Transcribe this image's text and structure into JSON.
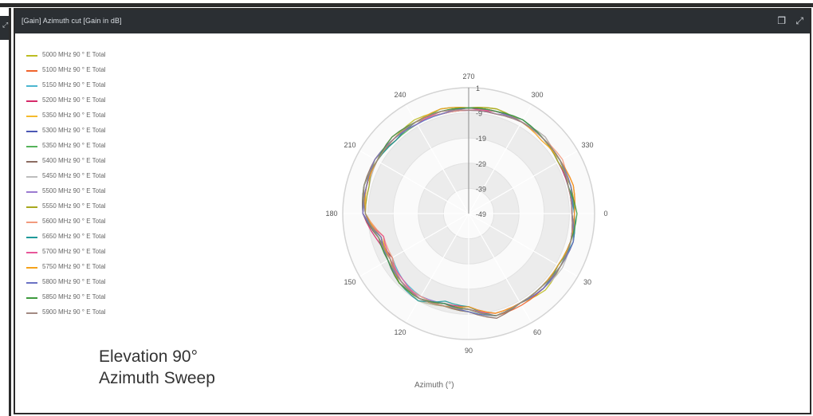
{
  "panel": {
    "title": "[Gain] Azimuth cut [Gain in dB]"
  },
  "caption": {
    "line1": "Elevation 90°",
    "line2": "Azimuth Sweep"
  },
  "colors": {
    "header_bg": "#2b2f33",
    "header_text": "#d8dde2",
    "polar_band_dark": "#ececec",
    "polar_band_light": "#fafafa"
  },
  "chart_data": {
    "type": "line",
    "subtype": "polar",
    "title": "[Gain] Azimuth cut [Gain in dB]",
    "xlabel": "Azimuth (°)",
    "angular_ticks": [
      270,
      300,
      330,
      0,
      30,
      60,
      90,
      120,
      150,
      180,
      210,
      240
    ],
    "radial_ticks": [
      "1",
      "-9",
      "-19",
      "-29",
      "-39",
      "-49"
    ],
    "radial_range": [
      -49,
      1
    ],
    "grid": true,
    "legend_position": "left",
    "series": [
      {
        "name": "5000 MHz 90 ° E Total",
        "color": "#bcbd22",
        "gain_db": [
          -7,
          -7,
          -7,
          -6,
          -8,
          -7,
          -10,
          -11,
          -9,
          -11,
          -12,
          -12,
          -7,
          -7,
          -6,
          -7,
          -6,
          -7,
          -7,
          -6,
          -7,
          -7,
          -7,
          -7
        ]
      },
      {
        "name": "5100 MHz 90 ° E Total",
        "color": "#f0642c",
        "gain_db": [
          -8,
          -6,
          -7,
          -7,
          -7,
          -7,
          -11,
          -12,
          -10,
          -11,
          -13,
          -13,
          -7,
          -7,
          -7,
          -6,
          -7,
          -7,
          -7,
          -7,
          -7,
          -7,
          -7,
          -8
        ]
      },
      {
        "name": "5150 MHz 90 ° E Total",
        "color": "#4cb6d0",
        "gain_db": [
          -7,
          -7,
          -8,
          -8,
          -8,
          -7,
          -10,
          -12,
          -11,
          -12,
          -14,
          -12,
          -7,
          -6,
          -7,
          -7,
          -8,
          -8,
          -7,
          -8,
          -6,
          -7,
          -8,
          -8
        ]
      },
      {
        "name": "5200 MHz 90 ° E Total",
        "color": "#d62a6a",
        "gain_db": [
          -8,
          -7,
          -8,
          -7,
          -8,
          -8,
          -12,
          -12,
          -10,
          -11,
          -14,
          -11,
          -7,
          -7,
          -7,
          -6,
          -7,
          -8,
          -7,
          -8,
          -7,
          -7,
          -8,
          -8
        ]
      },
      {
        "name": "5350 MHz 90 ° E Total",
        "color": "#f5bb2d",
        "gain_db": [
          -7,
          -6,
          -7,
          -8,
          -8,
          -8,
          -11,
          -11,
          -10,
          -11,
          -12,
          -14,
          -8,
          -7,
          -7,
          -7,
          -7,
          -8,
          -7,
          -7,
          -6,
          -7,
          -7,
          -6
        ]
      },
      {
        "name": "5300 MHz 90 ° E Total",
        "color": "#4c58b4",
        "gain_db": [
          -8,
          -7,
          -7,
          -7,
          -8,
          -7,
          -11,
          -12,
          -10,
          -10,
          -12,
          -12,
          -7,
          -7,
          -7,
          -7,
          -7,
          -8,
          -8,
          -7,
          -7,
          -7,
          -8,
          -7
        ]
      },
      {
        "name": "5350 MHz 90 ° E Total",
        "color": "#56b35a",
        "gain_db": [
          -8,
          -6,
          -7,
          -7,
          -8,
          -7,
          -11,
          -11,
          -10,
          -10,
          -12,
          -12,
          -7,
          -6,
          -7,
          -8,
          -8,
          -6,
          -7,
          -7,
          -7,
          -7,
          -8,
          -7
        ]
      },
      {
        "name": "5400 MHz 90 ° E Total",
        "color": "#8c6d62",
        "gain_db": [
          -7,
          -7,
          -8,
          -8,
          -8,
          -6,
          -10,
          -11,
          -10,
          -10,
          -14,
          -12,
          -7,
          -6,
          -6,
          -8,
          -7,
          -8,
          -8,
          -8,
          -7,
          -6,
          -8,
          -7
        ]
      },
      {
        "name": "5450 MHz 90 ° E Total",
        "color": "#bdbdbd",
        "gain_db": [
          -7,
          -7,
          -6,
          -7,
          -8,
          -7,
          -11,
          -11,
          -9,
          -11,
          -13,
          -13,
          -8,
          -8,
          -7,
          -6,
          -7,
          -7,
          -8,
          -7,
          -7,
          -6,
          -8,
          -7
        ]
      },
      {
        "name": "5500 MHz 90 ° E Total",
        "color": "#9b7bd0",
        "gain_db": [
          -7,
          -6,
          -7,
          -7,
          -8,
          -7,
          -11,
          -12,
          -11,
          -10,
          -12,
          -13,
          -7,
          -7,
          -6,
          -7,
          -7,
          -8,
          -8,
          -8,
          -6,
          -7,
          -7,
          -8
        ]
      },
      {
        "name": "5550 MHz 90 ° E Total",
        "color": "#a8a81e",
        "gain_db": [
          -7,
          -7,
          -8,
          -7,
          -8,
          -7,
          -11,
          -11,
          -10,
          -10,
          -13,
          -12,
          -8,
          -8,
          -6,
          -7,
          -7,
          -7,
          -7,
          -6,
          -7,
          -7,
          -8,
          -7
        ]
      },
      {
        "name": "5600 MHz 90 ° E Total",
        "color": "#f29a7e",
        "gain_db": [
          -8,
          -7,
          -7,
          -8,
          -8,
          -7,
          -12,
          -11,
          -11,
          -11,
          -14,
          -14,
          -8,
          -7,
          -6,
          -7,
          -7,
          -8,
          -8,
          -7,
          -6,
          -7,
          -6,
          -8
        ]
      },
      {
        "name": "5650 MHz 90 ° E Total",
        "color": "#1f9a9a",
        "gain_db": [
          -7,
          -6,
          -8,
          -7,
          -8,
          -7,
          -12,
          -13,
          -9,
          -10,
          -13,
          -13,
          -7,
          -7,
          -7,
          -8,
          -7,
          -7,
          -7,
          -7,
          -6,
          -7,
          -7,
          -8
        ]
      },
      {
        "name": "5700 MHz 90 ° E Total",
        "color": "#e8579a",
        "gain_db": [
          -7,
          -7,
          -7,
          -7,
          -8,
          -8,
          -11,
          -12,
          -10,
          -12,
          -13,
          -14,
          -7,
          -7,
          -7,
          -7,
          -8,
          -7,
          -8,
          -7,
          -7,
          -7,
          -7,
          -6
        ]
      },
      {
        "name": "5750 MHz 90 ° E Total",
        "color": "#f5a21b",
        "gain_db": [
          -7,
          -7,
          -8,
          -8,
          -8,
          -8,
          -12,
          -11,
          -10,
          -10,
          -13,
          -13,
          -8,
          -7,
          -7,
          -7,
          -7,
          -6,
          -7,
          -7,
          -7,
          -8,
          -7,
          -6
        ]
      },
      {
        "name": "5800 MHz 90 ° E Total",
        "color": "#6a72c4",
        "gain_db": [
          -8,
          -6,
          -7,
          -7,
          -8,
          -7,
          -10,
          -12,
          -10,
          -11,
          -12,
          -13,
          -7,
          -7,
          -6,
          -7,
          -8,
          -8,
          -7,
          -7,
          -7,
          -7,
          -7,
          -7
        ]
      },
      {
        "name": "5850 MHz 90 ° E Total",
        "color": "#3e9a3e",
        "gain_db": [
          -6,
          -7,
          -7,
          -8,
          -8,
          -7,
          -11,
          -12,
          -10,
          -10,
          -12,
          -12,
          -8,
          -6,
          -7,
          -6,
          -7,
          -7,
          -7,
          -7,
          -6,
          -7,
          -7,
          -8
        ]
      },
      {
        "name": "5900 MHz 90 ° E Total",
        "color": "#a28a83",
        "gain_db": [
          -8,
          -7,
          -7,
          -8,
          -8,
          -7,
          -11,
          -11,
          -10,
          -11,
          -13,
          -12,
          -8,
          -6,
          -7,
          -7,
          -7,
          -7,
          -8,
          -8,
          -7,
          -7,
          -7,
          -8
        ]
      }
    ],
    "sample_azimuths_deg": [
      0,
      15,
      30,
      45,
      60,
      75,
      90,
      105,
      120,
      135,
      150,
      165,
      180,
      195,
      210,
      225,
      240,
      255,
      270,
      285,
      300,
      315,
      330,
      345
    ]
  }
}
